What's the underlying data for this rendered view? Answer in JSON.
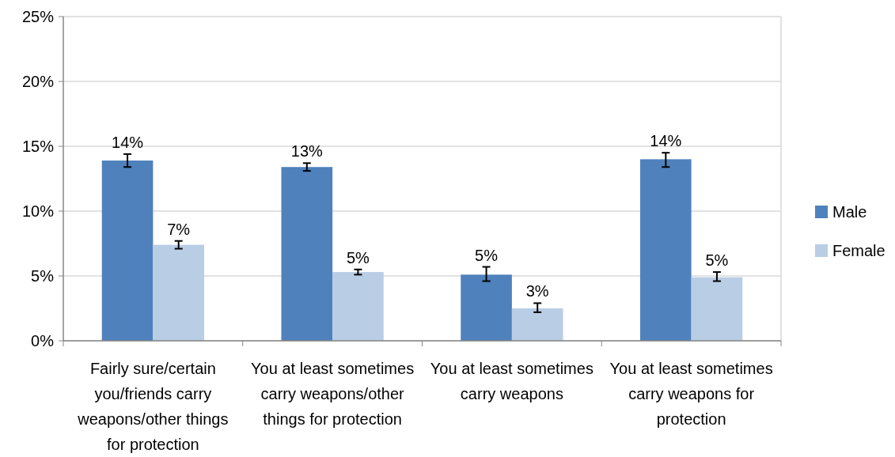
{
  "chart_data": {
    "type": "bar",
    "categories": [
      "Fairly sure/certain you/friends carry weapons/other things for protection",
      "You at least sometimes carry weapons/other things for protection",
      "You at least sometimes carry weapons",
      "You at least sometimes carry weapons for protection"
    ],
    "series": [
      {
        "name": "Male",
        "color": "#4f81bd",
        "values": [
          13.9,
          13.4,
          5.1,
          14.0
        ],
        "errors": [
          [
            13.4,
            14.4
          ],
          [
            13.1,
            13.7
          ],
          [
            4.6,
            5.7
          ],
          [
            13.4,
            14.5
          ]
        ],
        "value_labels": [
          "14%",
          "13%",
          "5%",
          "14%"
        ]
      },
      {
        "name": "Female",
        "color": "#b9cde5",
        "values": [
          7.4,
          5.3,
          2.5,
          4.9
        ],
        "errors": [
          [
            7.1,
            7.7
          ],
          [
            5.1,
            5.5
          ],
          [
            2.2,
            2.9
          ],
          [
            4.6,
            5.3
          ]
        ],
        "value_labels": [
          "7%",
          "5%",
          "3%",
          "5%"
        ]
      }
    ],
    "ylim": [
      0,
      25
    ],
    "yticks": [
      {
        "value": 0,
        "label": "0%"
      },
      {
        "value": 5,
        "label": "5%"
      },
      {
        "value": 10,
        "label": "10%"
      },
      {
        "value": 15,
        "label": "15%"
      },
      {
        "value": 20,
        "label": "20%"
      },
      {
        "value": 25,
        "label": "25%"
      }
    ],
    "grid": "y",
    "legend": "right"
  }
}
